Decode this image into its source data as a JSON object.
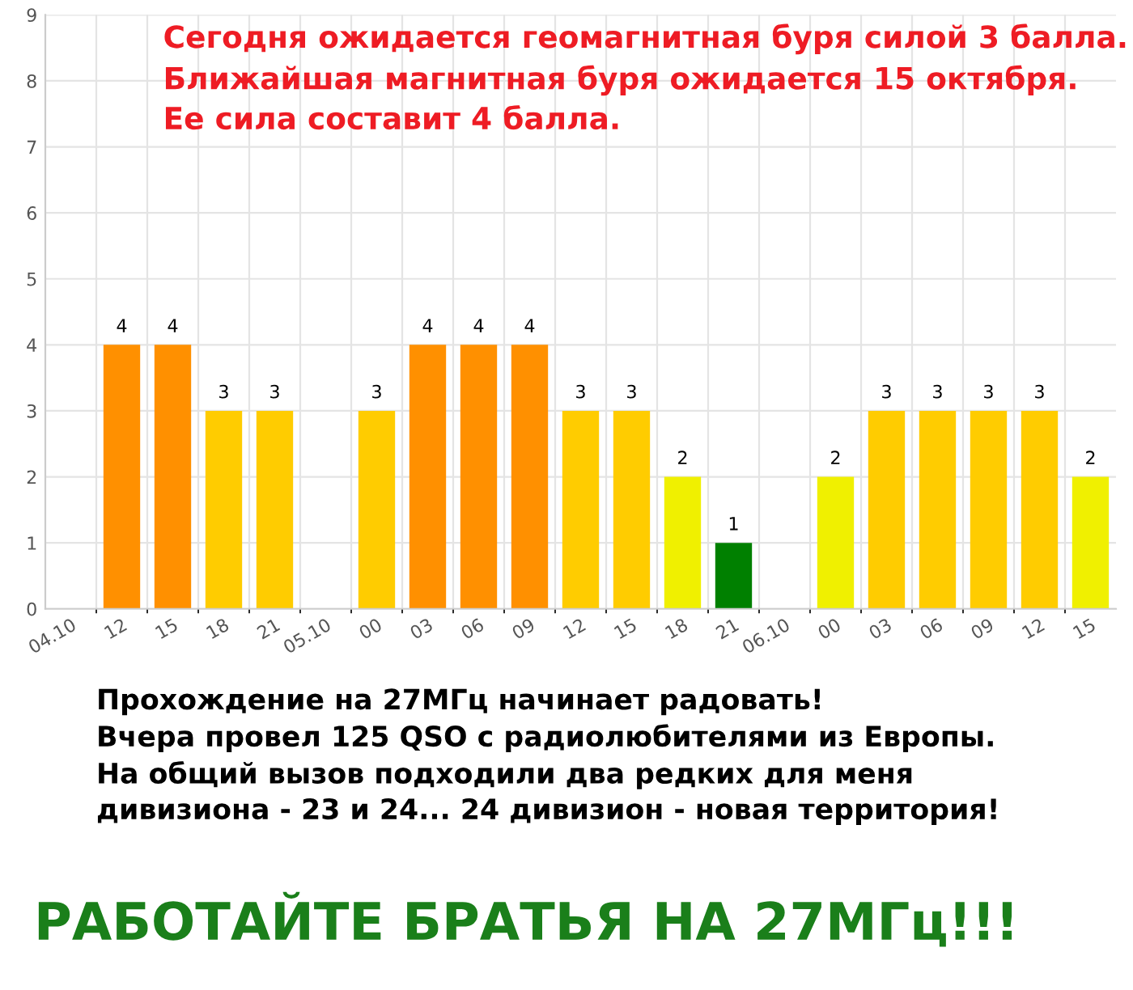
{
  "chart_data": {
    "type": "bar",
    "title": "Сегодня ожидается геомагнитная буря силой 3 балла.\nБлижайшая магнитная буря ожидается 15 октября.\nЕе сила составит 4 балла.",
    "categories": [
      "04.10",
      "12",
      "15",
      "18",
      "21",
      "05.10",
      "00",
      "03",
      "06",
      "09",
      "12",
      "15",
      "18",
      "21",
      "06.10",
      "00",
      "03",
      "06",
      "09",
      "12",
      "15"
    ],
    "values": [
      0,
      4,
      4,
      3,
      3,
      0,
      3,
      4,
      4,
      4,
      3,
      3,
      2,
      1,
      0,
      2,
      3,
      3,
      3,
      3,
      2
    ],
    "value_labels": [
      null,
      "4",
      "4",
      "3",
      "3",
      null,
      "3",
      "4",
      "4",
      "4",
      "3",
      "3",
      "2",
      "1",
      null,
      "2",
      "3",
      "3",
      "3",
      "3",
      "2"
    ],
    "colors": [
      "#008000",
      "#ff9000",
      "#ff9000",
      "#ffcc00",
      "#ffcc00",
      "#008000",
      "#ffcc00",
      "#ff9000",
      "#ff9000",
      "#ff9000",
      "#ffcc00",
      "#ffcc00",
      "#f0f000",
      "#008000",
      "#008000",
      "#f0f000",
      "#ffcc00",
      "#ffcc00",
      "#ffcc00",
      "#ffcc00",
      "#f0f000"
    ],
    "ylim": [
      0,
      9
    ],
    "yticks": [
      0,
      1,
      2,
      3,
      4,
      5,
      6,
      7,
      8,
      9
    ],
    "grid": true,
    "annotations": [
      "Прохождение на 27МГц начинает радовать!\nВчера провел 125 QSO с радиолюбителями из Европы.\nНа общий вызов подходили два редких для меня\nдивизиона - 23 и 24... 24 дивизион - новая территория!",
      "РАБОТАЙТЕ БРАТЬЯ НА 27МГц!!!"
    ]
  }
}
